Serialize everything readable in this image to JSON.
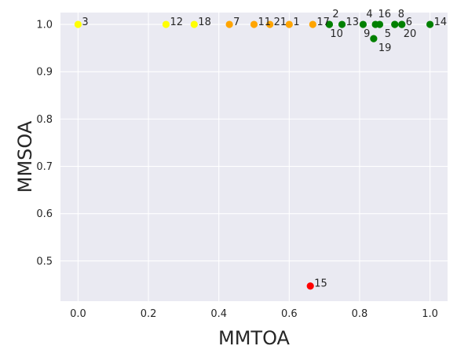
{
  "chart_data": {
    "type": "scatter",
    "xlabel": "MMTOA",
    "ylabel": "MMSOA",
    "xlim": [
      -0.05,
      1.05
    ],
    "ylim": [
      0.415,
      1.025
    ],
    "xticks": [
      "0.0",
      "0.2",
      "0.4",
      "0.6",
      "0.8",
      "1.0"
    ],
    "yticks": [
      "0.5",
      "0.6",
      "0.7",
      "0.8",
      "0.9",
      "1.0"
    ],
    "grid": true,
    "colors": {
      "background": "#eaeaf2",
      "yellow": "#ffff00",
      "orange": "#ffa500",
      "green": "#008000",
      "red": "#ff0000"
    },
    "points": [
      {
        "label": "3",
        "x": 0.0,
        "y": 1.0,
        "color": "yellow",
        "lpos": "r"
      },
      {
        "label": "12",
        "x": 0.25,
        "y": 1.0,
        "color": "yellow",
        "lpos": "r"
      },
      {
        "label": "18",
        "x": 0.33,
        "y": 1.0,
        "color": "yellow",
        "lpos": "r"
      },
      {
        "label": "7",
        "x": 0.43,
        "y": 1.0,
        "color": "orange",
        "lpos": "r"
      },
      {
        "label": "11",
        "x": 0.5,
        "y": 1.0,
        "color": "orange",
        "lpos": "r"
      },
      {
        "label": "21",
        "x": 0.545,
        "y": 1.0,
        "color": "orange",
        "lpos": "r"
      },
      {
        "label": "1",
        "x": 0.6,
        "y": 1.0,
        "color": "orange",
        "lpos": "r"
      },
      {
        "label": "17",
        "x": 0.667,
        "y": 1.0,
        "color": "orange",
        "lpos": "r"
      },
      {
        "label": "2",
        "x": 0.714,
        "y": 1.0,
        "color": "green",
        "lpos": "ur"
      },
      {
        "label": "10",
        "x": 0.714,
        "y": 1.0,
        "color": "green",
        "lpos": "lr"
      },
      {
        "label": "13",
        "x": 0.75,
        "y": 1.0,
        "color": "green",
        "lpos": "r"
      },
      {
        "label": "4",
        "x": 0.81,
        "y": 1.0,
        "color": "green",
        "lpos": "ur"
      },
      {
        "label": "16",
        "x": 0.857,
        "y": 1.0,
        "color": "green",
        "lpos": "u"
      },
      {
        "label": "9",
        "x": 0.845,
        "y": 1.0,
        "color": "green",
        "lpos": "lu"
      },
      {
        "label": "19",
        "x": 0.84,
        "y": 0.97,
        "color": "green",
        "lpos": "dr"
      },
      {
        "label": "8",
        "x": 0.9,
        "y": 1.0,
        "color": "green",
        "lpos": "ur"
      },
      {
        "label": "5",
        "x": 0.9,
        "y": 1.0,
        "color": "green",
        "lpos": "dl"
      },
      {
        "label": "6",
        "x": 0.92,
        "y": 1.0,
        "color": "green",
        "lpos": "r"
      },
      {
        "label": "20",
        "x": 0.92,
        "y": 1.0,
        "color": "green",
        "lpos": "d"
      },
      {
        "label": "14",
        "x": 1.0,
        "y": 1.0,
        "color": "green",
        "lpos": "r"
      },
      {
        "label": "15",
        "x": 0.66,
        "y": 0.447,
        "color": "red",
        "lpos": "r"
      }
    ]
  }
}
